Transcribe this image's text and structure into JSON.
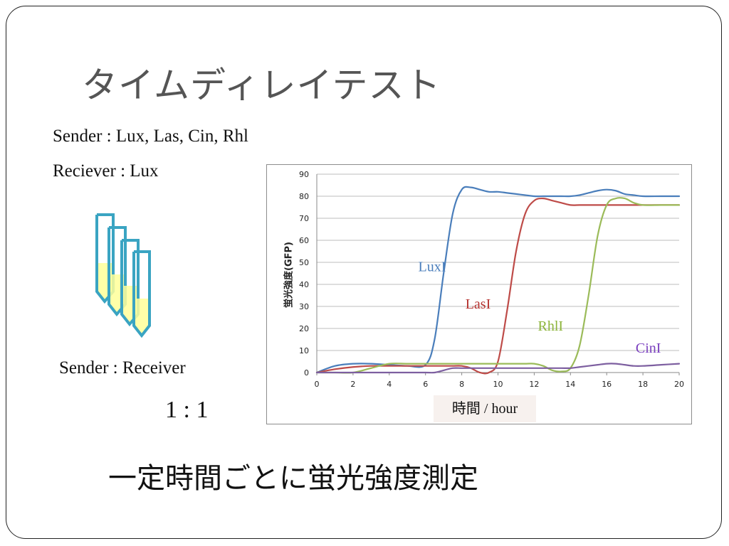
{
  "slide": {
    "title": "タイムディレイテスト",
    "sender_line": "Sender : Lux, Las, Cin, Rhl",
    "receiver_line": "Reciever : Lux",
    "tube_caption": "Sender : Receiver",
    "ratio": "1 : 1",
    "bottom_text": "一定時間ごとに蛍光強度測定"
  },
  "chart_data": {
    "type": "line",
    "title": "",
    "xlabel": "時間 / hour",
    "ylabel": "蛍光強度(GFP)",
    "xlim": [
      0,
      20
    ],
    "ylim": [
      0,
      90
    ],
    "x_ticks": [
      0,
      2,
      4,
      6,
      8,
      10,
      12,
      14,
      16,
      18,
      20
    ],
    "y_ticks": [
      0,
      10,
      20,
      30,
      40,
      50,
      60,
      70,
      80,
      90
    ],
    "grid": true,
    "x": [
      0,
      1,
      2,
      3,
      4,
      5,
      6,
      6.5,
      7,
      7.5,
      8,
      8.5,
      9,
      9.5,
      10,
      10.5,
      11,
      11.5,
      12,
      12.5,
      13,
      13.5,
      14,
      14.5,
      15,
      15.5,
      16,
      16.5,
      17,
      17.5,
      18,
      19,
      20
    ],
    "series": [
      {
        "name": "LuxI",
        "color": "#4a7ebb",
        "values": [
          0,
          3,
          4,
          4,
          3.5,
          3,
          3.5,
          15,
          45,
          72,
          83,
          84,
          83,
          82,
          82,
          81.5,
          81,
          80.5,
          80,
          80,
          80,
          80,
          80,
          80.5,
          81.5,
          82.5,
          83,
          82.5,
          81,
          80.5,
          80,
          80,
          80
        ]
      },
      {
        "name": "LasI",
        "color": "#be4b48",
        "values": [
          0,
          1.5,
          2.5,
          3,
          3,
          3,
          3,
          3,
          3,
          3,
          3,
          2,
          0,
          0,
          5,
          28,
          55,
          72,
          78,
          79,
          78,
          77,
          76,
          76,
          76,
          76,
          76,
          76,
          76,
          76,
          76,
          76,
          76
        ]
      },
      {
        "name": "RhlI",
        "color": "#9bbb59",
        "values": [
          0,
          0,
          0,
          2,
          4,
          4,
          4,
          4,
          4,
          4,
          4,
          4,
          4,
          4,
          4,
          4,
          4,
          4,
          4,
          3,
          1,
          0.5,
          2,
          12,
          35,
          62,
          76,
          79,
          79,
          77,
          76,
          76,
          76
        ]
      },
      {
        "name": "CinI",
        "color": "#7d5fa0",
        "values": [
          0,
          0,
          0,
          0,
          0,
          0,
          0,
          0,
          1,
          2,
          2,
          2,
          2,
          2,
          2,
          2,
          2,
          2,
          2,
          2,
          2,
          2,
          2,
          2.5,
          3,
          3.5,
          4,
          4,
          3.5,
          3,
          3,
          3.5,
          4
        ]
      }
    ],
    "annotations": [
      {
        "text": "LuxI",
        "color": "#4a7ebb",
        "x": 5.6,
        "y": 46
      },
      {
        "text": "LasI",
        "color": "#b5322f",
        "x": 8.2,
        "y": 29
      },
      {
        "text": "RhlI",
        "color": "#8cb43a",
        "x": 12.2,
        "y": 19
      },
      {
        "text": "CinI",
        "color": "#7a3fbf",
        "x": 17.6,
        "y": 9
      }
    ]
  }
}
